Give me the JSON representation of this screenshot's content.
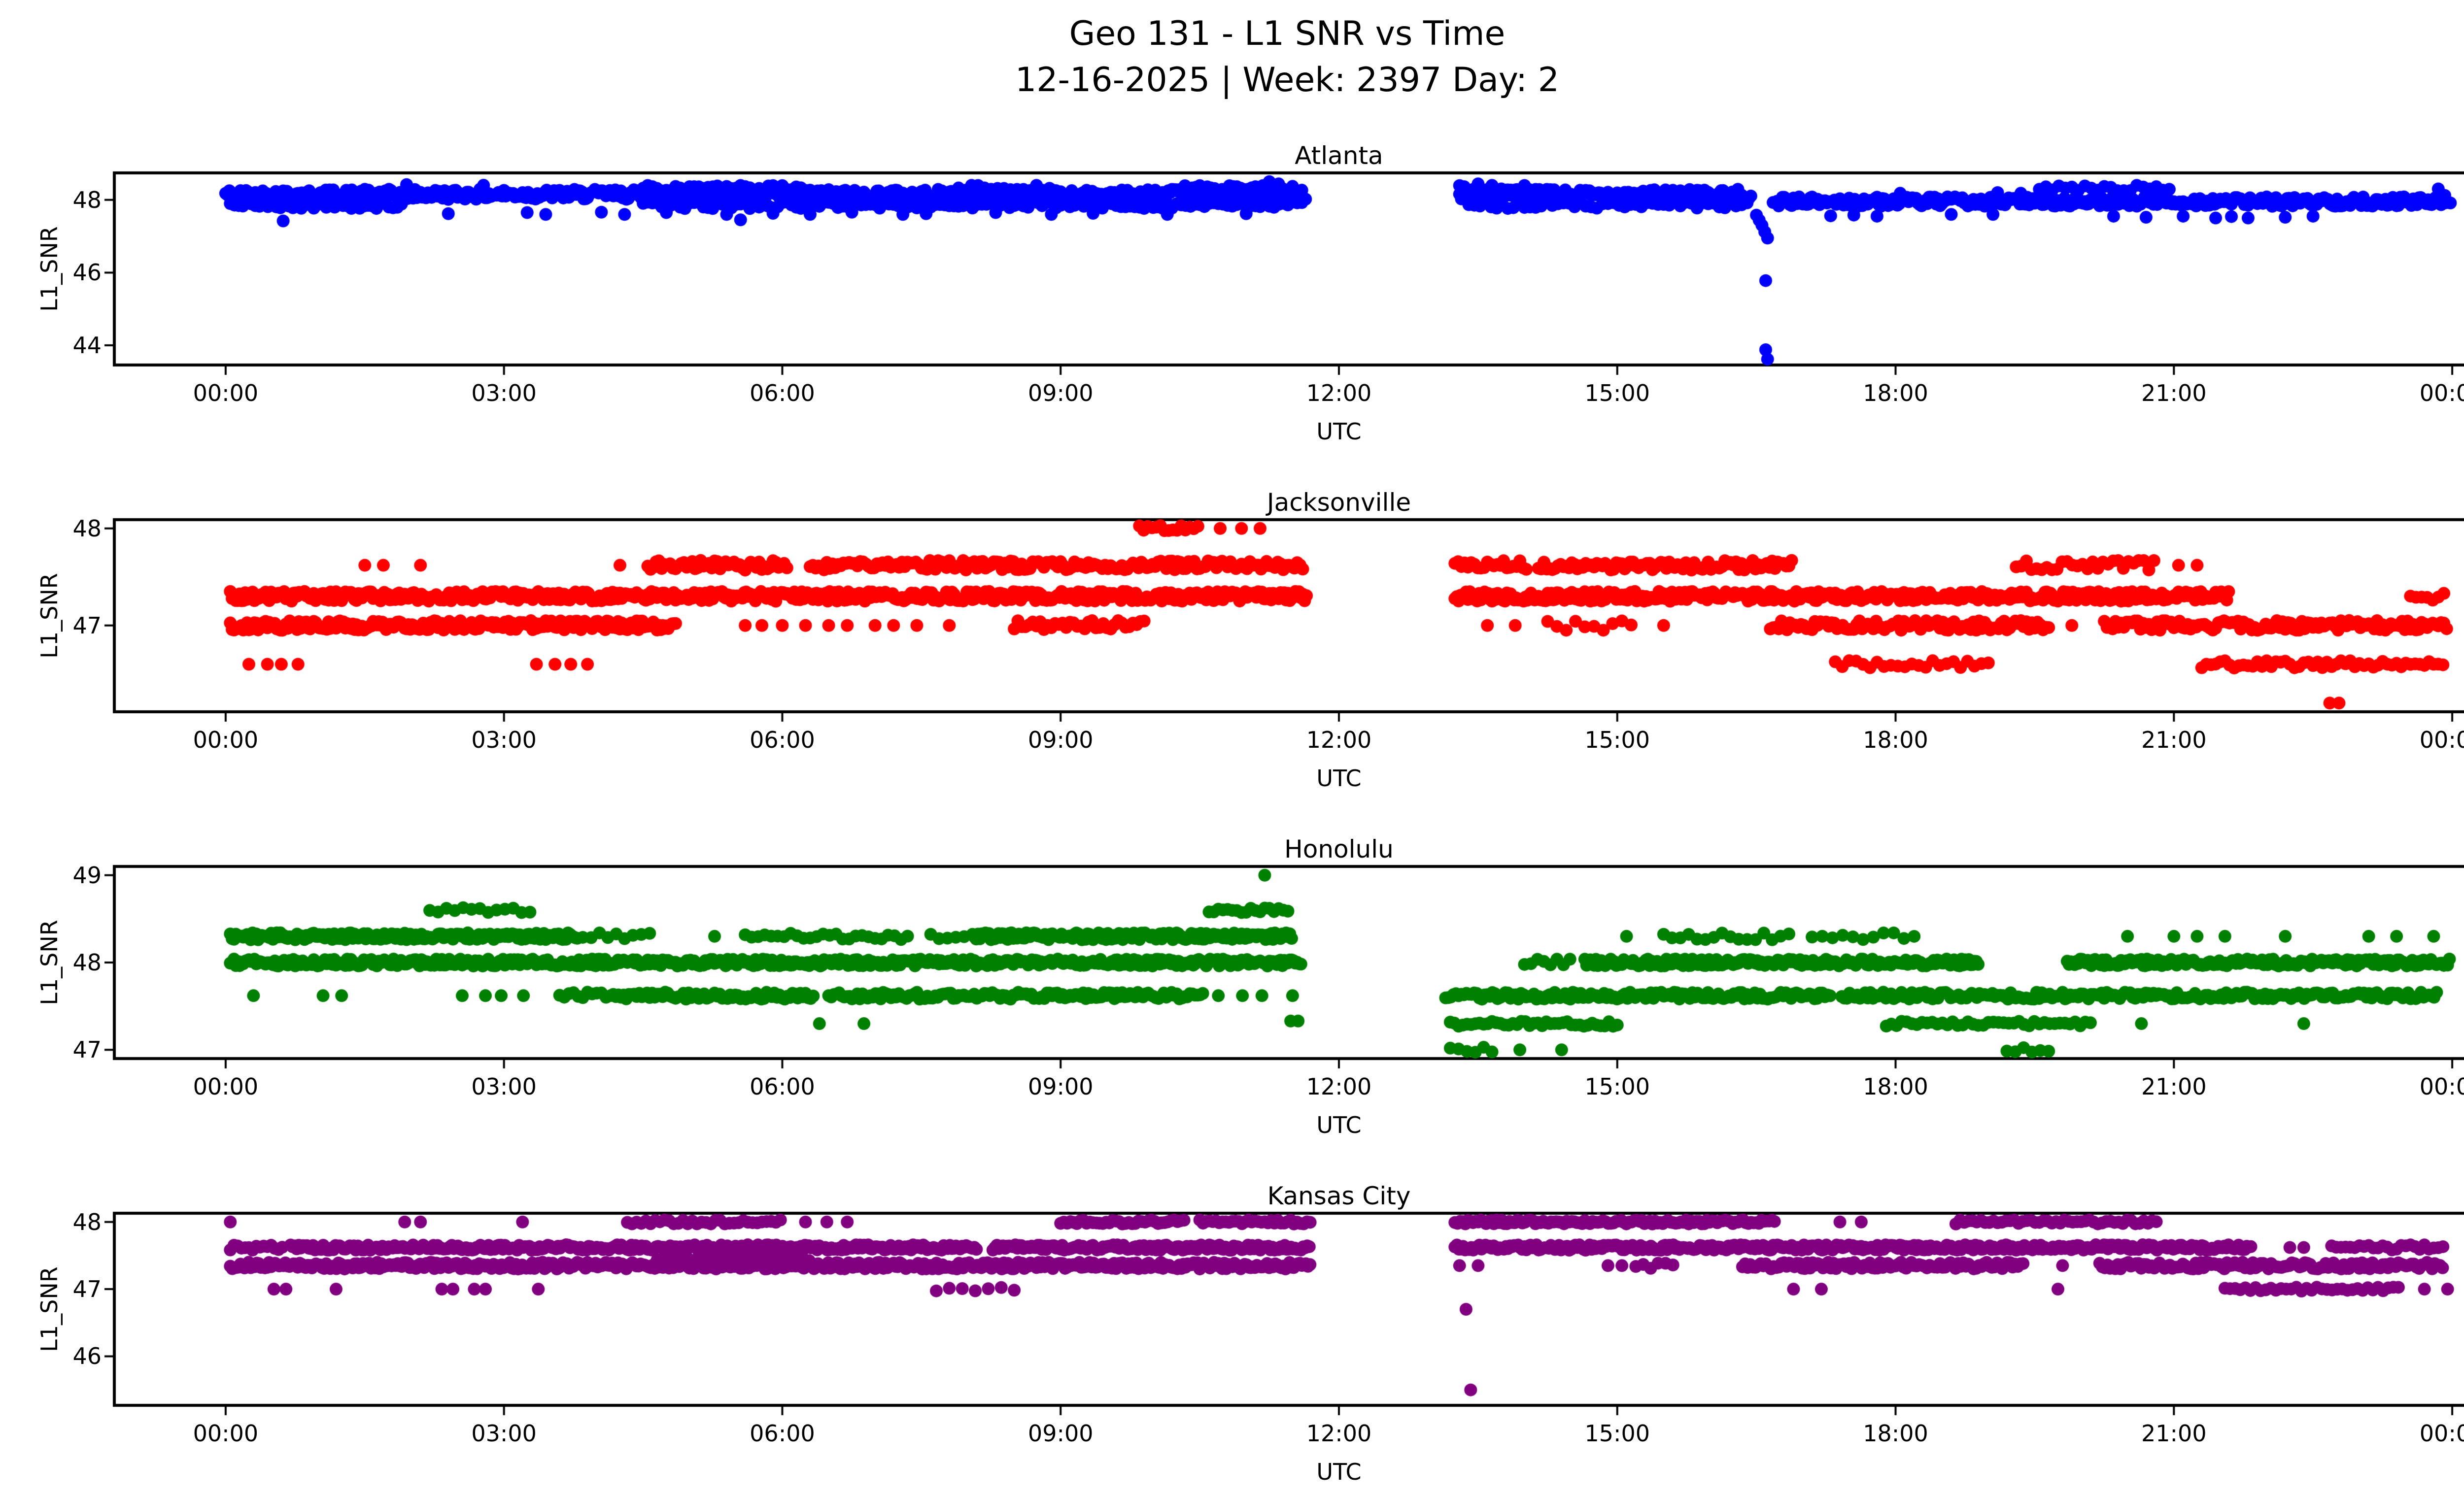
{
  "header": {
    "title_line1": "Geo 131 - L1 SNR vs Time",
    "title_line2": "12-16-2025 | Week: 2397 Day: 2"
  },
  "chart_data": [
    {
      "type": "scatter",
      "title": "Atlanta",
      "xlabel": "UTC",
      "ylabel": "L1_SNR",
      "color": "#0000FF",
      "grid": false,
      "xlim": [
        -1.2,
        25.2
      ],
      "ylim": [
        43.46,
        48.74
      ],
      "yticks": [
        44,
        46,
        48
      ],
      "xticks": {
        "values": [
          0,
          3,
          6,
          9,
          12,
          15,
          18,
          21,
          24
        ],
        "labels": [
          "00:00",
          "03:00",
          "06:00",
          "09:00",
          "12:00",
          "15:00",
          "18:00",
          "21:00",
          "00:00"
        ]
      },
      "series": [
        {
          "snr": 48.15,
          "jitter": 0.14,
          "segments": [
            [
              0.0,
              11.65,
              0.02
            ],
            [
              13.3,
              16.45,
              0.02
            ]
          ]
        },
        {
          "snr": 47.85,
          "jitter": 0.09,
          "segments": [
            [
              0.05,
              1.9,
              0.045
            ],
            [
              4.5,
              11.6,
              0.05
            ],
            [
              13.4,
              16.4,
              0.06
            ]
          ]
        },
        {
          "snr": 47.95,
          "jitter": 0.13,
          "segments": [
            [
              16.68,
              23.98,
              0.02
            ]
          ]
        },
        {
          "snr": 48.32,
          "jitter": 0.08,
          "segments": [
            [
              4.5,
              6.3,
              0.05
            ],
            [
              7.9,
              9.0,
              0.07
            ],
            [
              10.3,
              11.5,
              0.04
            ],
            [
              13.3,
              14.05,
              0.05
            ],
            [
              19.55,
              20.95,
              0.07
            ]
          ]
        }
      ],
      "points": [
        [
          2.4,
          47.62
        ],
        [
          3.25,
          47.65
        ],
        [
          3.45,
          47.6
        ],
        [
          4.05,
          47.66
        ],
        [
          4.3,
          47.6
        ],
        [
          4.75,
          47.65
        ],
        [
          5.4,
          47.6
        ],
        [
          5.9,
          47.63
        ],
        [
          6.3,
          47.6
        ],
        [
          6.75,
          47.66
        ],
        [
          7.3,
          47.6
        ],
        [
          7.55,
          47.62
        ],
        [
          8.3,
          47.65
        ],
        [
          8.9,
          47.6
        ],
        [
          9.35,
          47.63
        ],
        [
          10.15,
          47.6
        ],
        [
          11.0,
          47.62
        ],
        [
          0.62,
          47.42
        ],
        [
          5.55,
          47.45
        ],
        [
          1.95,
          48.42
        ],
        [
          2.78,
          48.4
        ],
        [
          11.25,
          48.5
        ],
        [
          11.35,
          48.44
        ],
        [
          13.5,
          48.44
        ],
        [
          16.5,
          47.58
        ],
        [
          16.53,
          47.44
        ],
        [
          16.56,
          47.3
        ],
        [
          16.59,
          47.12
        ],
        [
          16.62,
          46.95
        ],
        [
          16.6,
          45.78
        ],
        [
          16.6,
          43.88
        ],
        [
          16.62,
          43.62
        ],
        [
          17.3,
          47.56
        ],
        [
          17.55,
          47.58
        ],
        [
          17.8,
          47.55
        ],
        [
          18.6,
          47.6
        ],
        [
          19.05,
          47.6
        ],
        [
          20.35,
          47.55
        ],
        [
          20.7,
          47.52
        ],
        [
          21.1,
          47.55
        ],
        [
          21.45,
          47.5
        ],
        [
          21.62,
          47.54
        ],
        [
          21.8,
          47.5
        ],
        [
          22.2,
          47.52
        ],
        [
          22.5,
          47.55
        ],
        [
          18.05,
          48.18
        ],
        [
          19.1,
          48.2
        ],
        [
          19.35,
          48.18
        ],
        [
          23.85,
          48.3
        ],
        [
          23.92,
          48.12
        ]
      ]
    },
    {
      "type": "scatter",
      "title": "Jacksonville",
      "xlabel": "UTC",
      "ylabel": "L1_SNR",
      "color": "#FF0000",
      "grid": false,
      "xlim": [
        -1.2,
        25.2
      ],
      "ylim": [
        46.11,
        48.09
      ],
      "yticks": [
        47,
        48
      ],
      "xticks": {
        "values": [
          0,
          3,
          6,
          9,
          12,
          15,
          18,
          21,
          24
        ],
        "labels": [
          "00:00",
          "03:00",
          "06:00",
          "09:00",
          "12:00",
          "15:00",
          "18:00",
          "21:00",
          "00:00"
        ]
      },
      "series": [
        {
          "snr": 47.3,
          "jitter": 0.05,
          "segments": [
            [
              0.05,
              11.65,
              0.02
            ],
            [
              13.25,
              21.6,
              0.02
            ],
            [
              23.55,
              23.95,
              0.06
            ]
          ]
        },
        {
          "snr": 47.0,
          "jitter": 0.05,
          "segments": [
            [
              0.05,
              4.85,
              0.02
            ],
            [
              8.5,
              9.9,
              0.04
            ],
            [
              14.25,
              15.15,
              0.1
            ],
            [
              16.65,
              19.65,
              0.03
            ],
            [
              20.25,
              23.95,
              0.03
            ]
          ]
        },
        {
          "snr": 47.62,
          "jitter": 0.05,
          "segments": [
            [
              4.55,
              6.05,
              0.03
            ],
            [
              6.3,
              11.63,
              0.03
            ],
            [
              13.25,
              14.05,
              0.035
            ],
            [
              14.15,
              16.9,
              0.03
            ],
            [
              19.3,
              20.8,
              0.055
            ]
          ]
        },
        {
          "snr": 48.0,
          "jitter": 0.03,
          "segments": [
            [
              9.85,
              10.5,
              0.045
            ]
          ]
        },
        {
          "snr": 46.6,
          "jitter": 0.04,
          "segments": [
            [
              17.35,
              19.0,
              0.075
            ],
            [
              21.3,
              23.9,
              0.05
            ]
          ]
        }
      ],
      "points": [
        [
          10.72,
          48.0
        ],
        [
          10.95,
          48.0
        ],
        [
          11.15,
          48.0
        ],
        [
          1.5,
          47.62
        ],
        [
          1.7,
          47.62
        ],
        [
          2.1,
          47.62
        ],
        [
          4.25,
          47.62
        ],
        [
          21.05,
          47.62
        ],
        [
          21.25,
          47.62
        ],
        [
          5.6,
          47.0
        ],
        [
          5.78,
          47.0
        ],
        [
          6.0,
          47.0
        ],
        [
          6.25,
          47.0
        ],
        [
          6.5,
          47.0
        ],
        [
          6.7,
          47.0
        ],
        [
          7.0,
          47.0
        ],
        [
          7.2,
          47.0
        ],
        [
          7.45,
          47.0
        ],
        [
          7.8,
          47.0
        ],
        [
          9.7,
          47.0
        ],
        [
          13.6,
          47.0
        ],
        [
          13.9,
          47.0
        ],
        [
          15.5,
          47.0
        ],
        [
          19.9,
          47.0
        ],
        [
          0.25,
          46.6
        ],
        [
          0.45,
          46.6
        ],
        [
          0.6,
          46.6
        ],
        [
          0.78,
          46.6
        ],
        [
          3.35,
          46.6
        ],
        [
          3.55,
          46.6
        ],
        [
          3.72,
          46.6
        ],
        [
          3.9,
          46.6
        ],
        [
          22.68,
          46.2
        ],
        [
          22.78,
          46.2
        ]
      ]
    },
    {
      "type": "scatter",
      "title": "Honolulu",
      "xlabel": "UTC",
      "ylabel": "L1_SNR",
      "color": "#008000",
      "grid": false,
      "xlim": [
        -1.2,
        25.2
      ],
      "ylim": [
        46.9,
        49.1
      ],
      "yticks": [
        47,
        48,
        49
      ],
      "xticks": {
        "values": [
          0,
          3,
          6,
          9,
          12,
          15,
          18,
          21,
          24
        ],
        "labels": [
          "00:00",
          "03:00",
          "06:00",
          "09:00",
          "12:00",
          "15:00",
          "18:00",
          "21:00",
          "00:00"
        ]
      },
      "series": [
        {
          "snr": 48.3,
          "jitter": 0.04,
          "segments": [
            [
              0.05,
              3.8,
              0.02
            ],
            [
              3.85,
              4.65,
              0.09
            ],
            [
              5.6,
              7.4,
              0.07
            ],
            [
              7.6,
              7.97,
              0.09
            ],
            [
              8.05,
              11.5,
              0.02
            ],
            [
              15.5,
              16.9,
              0.09
            ],
            [
              17.1,
              18.25,
              0.11
            ]
          ]
        },
        {
          "snr": 48.0,
          "jitter": 0.04,
          "segments": [
            [
              0.05,
              11.6,
              0.02
            ],
            [
              14.0,
              14.5,
              0.07
            ],
            [
              14.65,
              18.9,
              0.02
            ],
            [
              19.85,
              23.97,
              0.02
            ]
          ]
        },
        {
          "snr": 47.62,
          "jitter": 0.04,
          "segments": [
            [
              3.6,
              4.1,
              0.05
            ],
            [
              4.15,
              6.35,
              0.028
            ],
            [
              6.5,
              10.55,
              0.028
            ],
            [
              13.15,
              17.3,
              0.028
            ],
            [
              17.42,
              23.85,
              0.028
            ]
          ]
        },
        {
          "snr": 47.3,
          "jitter": 0.03,
          "segments": [
            [
              13.2,
              15.0,
              0.045
            ],
            [
              17.9,
              20.15,
              0.055
            ]
          ]
        },
        {
          "snr": 48.6,
          "jitter": 0.03,
          "segments": [
            [
              2.2,
              3.3,
              0.09
            ],
            [
              10.6,
              11.45,
              0.05
            ]
          ]
        },
        {
          "snr": 47.0,
          "jitter": 0.03,
          "segments": [
            [
              13.2,
              13.7,
              0.09
            ],
            [
              19.2,
              19.7,
              0.09
            ]
          ]
        }
      ],
      "points": [
        [
          11.2,
          49.0
        ],
        [
          5.27,
          48.3
        ],
        [
          15.1,
          48.3
        ],
        [
          20.5,
          48.3
        ],
        [
          21.0,
          48.3
        ],
        [
          21.25,
          48.3
        ],
        [
          21.55,
          48.3
        ],
        [
          22.2,
          48.3
        ],
        [
          23.1,
          48.3
        ],
        [
          23.4,
          48.3
        ],
        [
          23.8,
          48.3
        ],
        [
          0.3,
          47.62
        ],
        [
          1.05,
          47.62
        ],
        [
          1.25,
          47.62
        ],
        [
          2.55,
          47.62
        ],
        [
          2.8,
          47.62
        ],
        [
          2.97,
          47.62
        ],
        [
          3.21,
          47.62
        ],
        [
          10.7,
          47.62
        ],
        [
          10.96,
          47.62
        ],
        [
          11.17,
          47.62
        ],
        [
          11.5,
          47.62
        ],
        [
          6.4,
          47.3
        ],
        [
          6.88,
          47.3
        ],
        [
          11.48,
          47.33
        ],
        [
          11.56,
          47.33
        ],
        [
          20.65,
          47.3
        ],
        [
          22.4,
          47.3
        ],
        [
          13.95,
          47.0
        ],
        [
          14.4,
          47.0
        ]
      ]
    },
    {
      "type": "scatter",
      "title": "Kansas City",
      "xlabel": "UTC",
      "ylabel": "L1_SNR",
      "color": "#800080",
      "grid": false,
      "xlim": [
        -1.2,
        25.2
      ],
      "ylim": [
        45.27,
        48.13
      ],
      "yticks": [
        46,
        47,
        48
      ],
      "xticks": {
        "values": [
          0,
          3,
          6,
          9,
          12,
          15,
          18,
          21,
          24
        ],
        "labels": [
          "00:00",
          "03:00",
          "06:00",
          "09:00",
          "12:00",
          "15:00",
          "18:00",
          "21:00",
          "00:00"
        ]
      },
      "series": [
        {
          "snr": 47.62,
          "jitter": 0.04,
          "segments": [
            [
              0.05,
              0.63,
              0.04
            ],
            [
              0.7,
              8.1,
              0.022
            ],
            [
              8.27,
              11.7,
              0.022
            ],
            [
              13.25,
              21.85,
              0.022
            ],
            [
              22.7,
              23.9,
              0.05
            ]
          ]
        },
        {
          "snr": 47.35,
          "jitter": 0.05,
          "segments": [
            [
              0.05,
              11.7,
              0.022
            ],
            [
              15.2,
              15.6,
              0.08
            ],
            [
              16.35,
              19.4,
              0.028
            ],
            [
              20.2,
              23.9,
              0.028
            ]
          ]
        },
        {
          "snr": 47.45,
          "jitter": 0.03,
          "segments": [
            [
              4.65,
              6.3,
              0.04
            ]
          ]
        },
        {
          "snr": 48.0,
          "jitter": 0.03,
          "segments": [
            [
              4.33,
              6.0,
              0.05
            ],
            [
              9.0,
              10.35,
              0.035
            ],
            [
              10.5,
              11.7,
              0.035
            ],
            [
              13.25,
              16.7,
              0.028
            ],
            [
              18.65,
              20.85,
              0.045
            ]
          ]
        },
        {
          "snr": 47.0,
          "jitter": 0.03,
          "segments": [
            [
              7.66,
              8.6,
              0.14
            ],
            [
              21.55,
              23.45,
              0.055
            ]
          ]
        }
      ],
      "points": [
        [
          0.05,
          48.0
        ],
        [
          1.93,
          48.0
        ],
        [
          2.1,
          48.0
        ],
        [
          3.2,
          48.0
        ],
        [
          6.25,
          48.0
        ],
        [
          6.48,
          48.0
        ],
        [
          6.7,
          48.0
        ],
        [
          17.4,
          48.0
        ],
        [
          17.63,
          48.0
        ],
        [
          13.3,
          47.35
        ],
        [
          13.5,
          47.35
        ],
        [
          14.9,
          47.35
        ],
        [
          15.05,
          47.35
        ],
        [
          19.8,
          47.35
        ],
        [
          22.25,
          47.62
        ],
        [
          22.4,
          47.62
        ],
        [
          0.52,
          47.0
        ],
        [
          0.65,
          47.0
        ],
        [
          1.19,
          47.0
        ],
        [
          2.33,
          47.0
        ],
        [
          2.45,
          47.0
        ],
        [
          2.68,
          47.0
        ],
        [
          2.8,
          47.0
        ],
        [
          3.37,
          47.0
        ],
        [
          16.9,
          47.0
        ],
        [
          17.2,
          47.0
        ],
        [
          19.75,
          47.0
        ],
        [
          23.7,
          47.0
        ],
        [
          23.95,
          47.0
        ],
        [
          13.37,
          46.7
        ],
        [
          13.42,
          45.5
        ]
      ]
    }
  ]
}
